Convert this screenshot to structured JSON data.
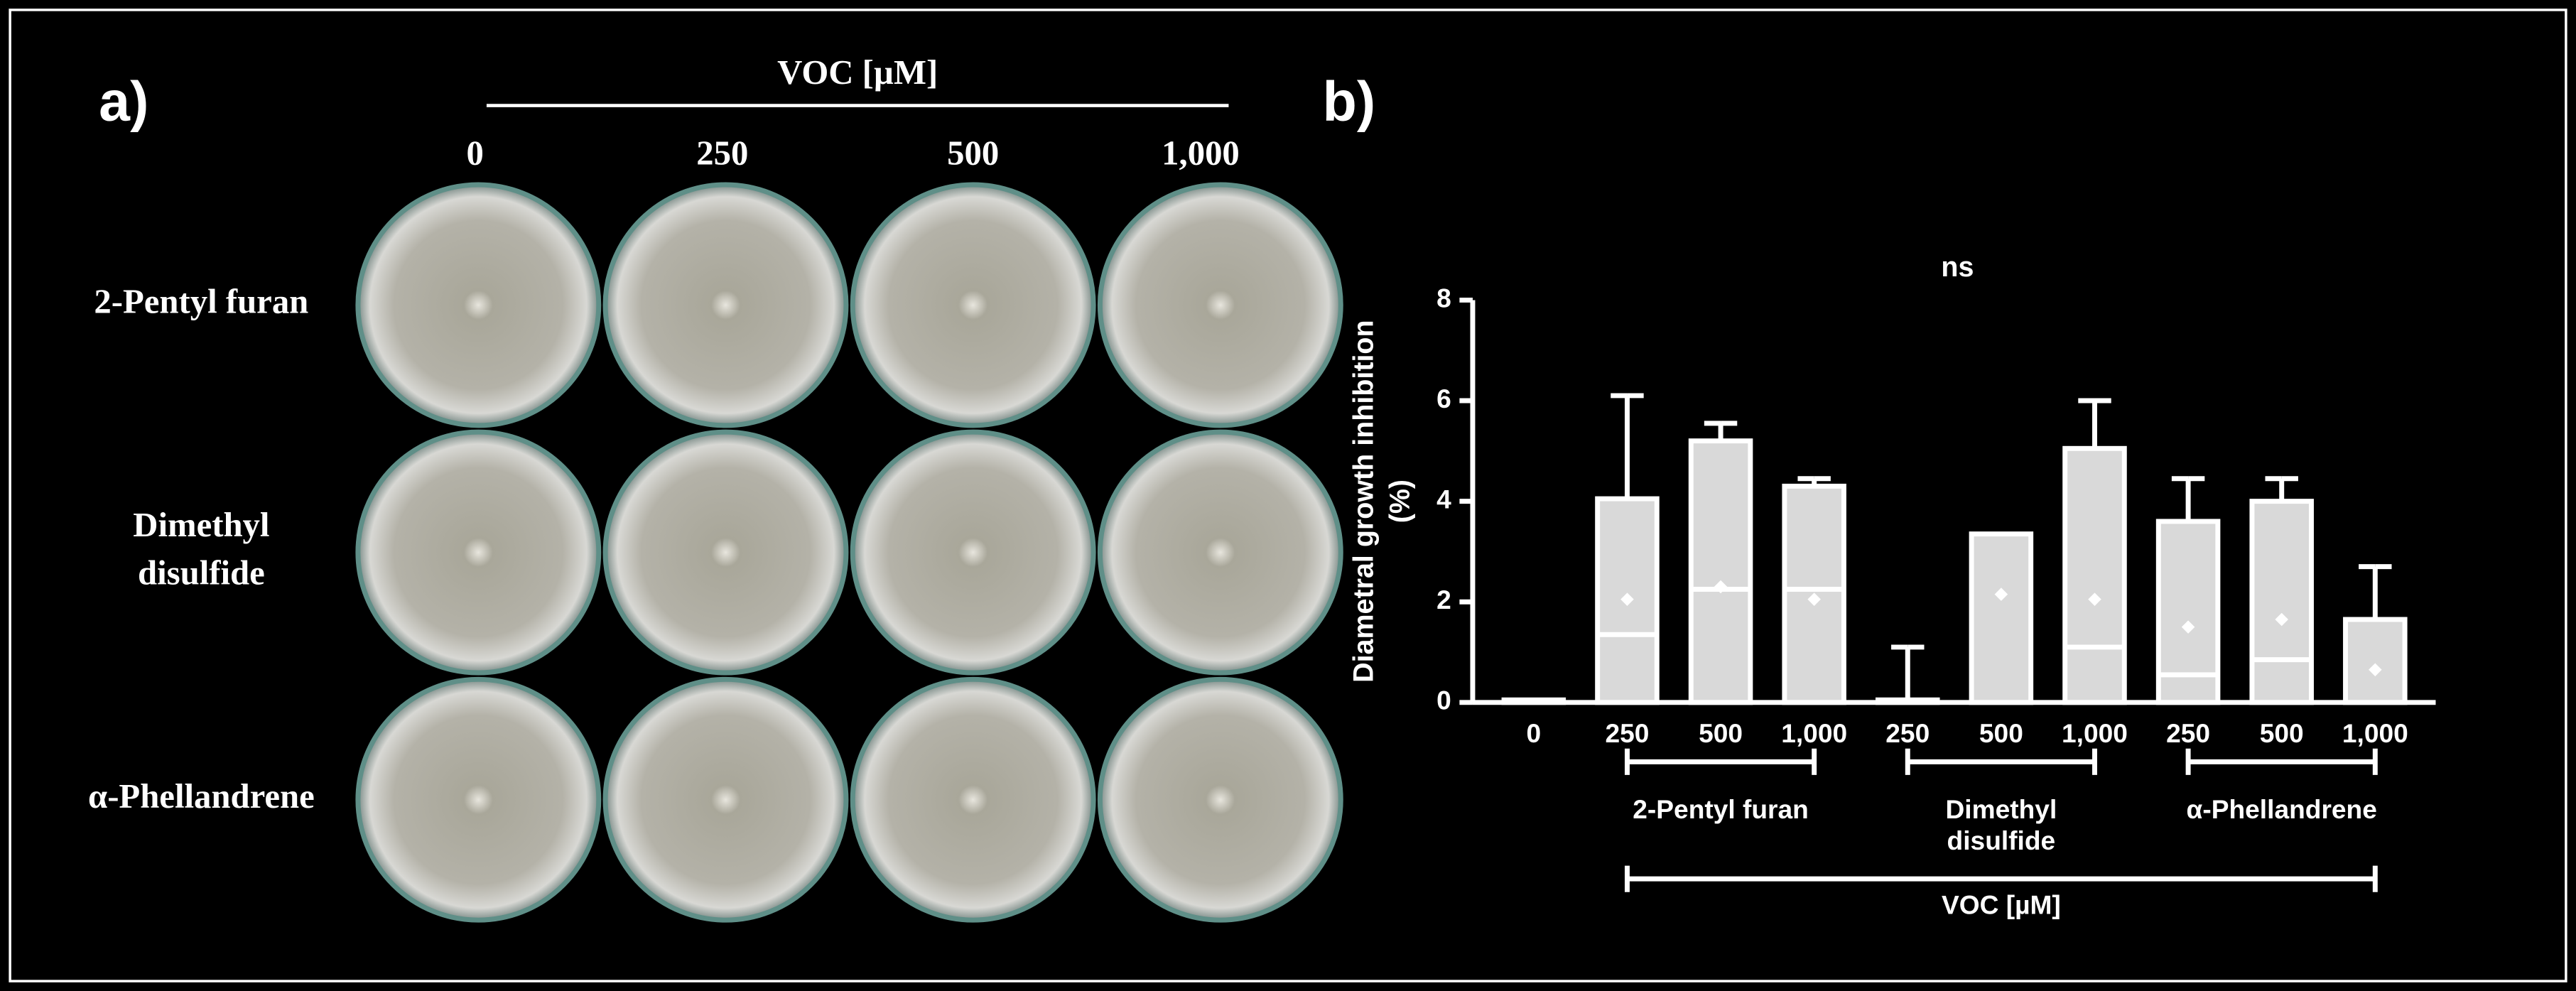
{
  "panel_a": {
    "label": "a)",
    "title": "VOC [µM]",
    "columns": [
      "0",
      "250",
      "500",
      "1,000"
    ],
    "rows": [
      [
        "2-Pentyl furan"
      ],
      [
        "Dimethyl",
        "disulfide"
      ],
      [
        "α-Phellandrene"
      ]
    ]
  },
  "chart_data": {
    "type": "bar",
    "panel_label": "b)",
    "annotation": "ns",
    "ylabel": [
      "Diametral growth inhibition",
      "(%)"
    ],
    "categories": [
      "0",
      "250",
      "500",
      "1,000",
      "250",
      "500",
      "1,000",
      "250",
      "500",
      "1,000"
    ],
    "values": [
      0.05,
      4.05,
      5.2,
      4.3,
      0.05,
      3.35,
      5.05,
      3.6,
      4.0,
      1.65
    ],
    "errors": [
      null,
      2.05,
      0.35,
      0.15,
      1.05,
      null,
      0.95,
      0.85,
      0.45,
      1.05
    ],
    "medians": [
      null,
      1.35,
      2.25,
      2.25,
      null,
      null,
      1.1,
      0.55,
      0.85,
      null
    ],
    "means": [
      null,
      2.05,
      2.3,
      2.05,
      null,
      2.15,
      2.05,
      1.5,
      1.65,
      0.65
    ],
    "groups": [
      [
        "2-Pentyl furan"
      ],
      [
        "Dimethyl",
        "disulfide"
      ],
      [
        "α-Phellandrene"
      ]
    ],
    "xlabel": "VOC [µM]",
    "color": "#d9d9d9",
    "edge_color": "#ffffff",
    "ylim": [
      0,
      8
    ],
    "yticks": [
      0,
      2,
      4,
      6,
      8
    ]
  }
}
